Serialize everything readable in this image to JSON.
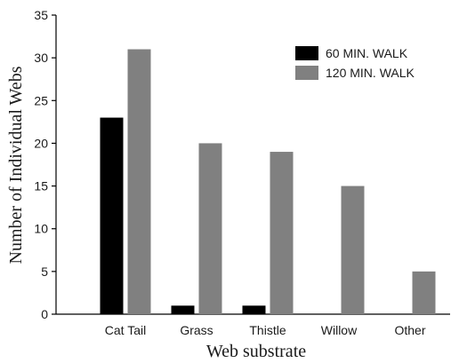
{
  "chart_data": {
    "type": "bar",
    "title": "",
    "xlabel": "Web substrate",
    "ylabel": "Number of Individual Webs",
    "categories": [
      "Cat Tail",
      "Grass",
      "Thistle",
      "Willow",
      "Other"
    ],
    "series": [
      {
        "name": "60 MIN. WALK",
        "color": "#000000",
        "values": [
          23,
          1,
          1,
          0,
          0
        ]
      },
      {
        "name": "120 MIN. WALK",
        "color": "#808080",
        "values": [
          31,
          20,
          19,
          15,
          5
        ]
      }
    ],
    "ylim": [
      0,
      35
    ],
    "yticks": [
      0,
      5,
      10,
      15,
      20,
      25,
      30,
      35
    ],
    "grid": false,
    "legend_position": "top-right"
  }
}
